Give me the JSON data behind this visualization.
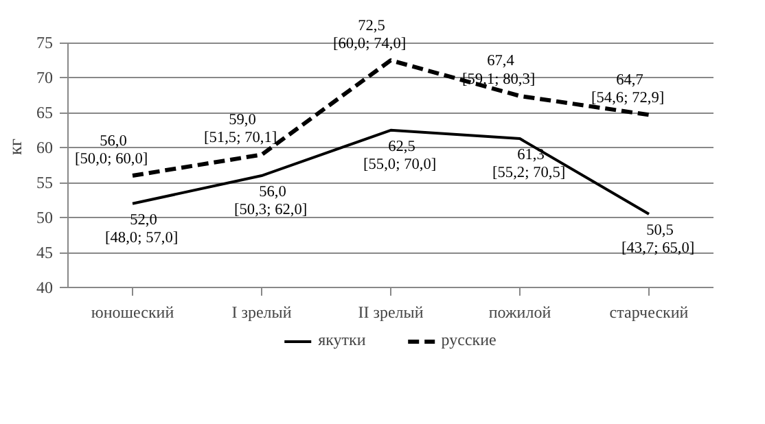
{
  "chart_data": {
    "type": "line",
    "ylabel": "кг",
    "categories": [
      "юношеский",
      "I зрелый",
      "II зрелый",
      "пожилой",
      "старческий"
    ],
    "series": [
      {
        "name": "якутки",
        "color": "#000000",
        "line_style": "solid",
        "values": [
          52.0,
          56.0,
          62.5,
          61.3,
          50.5
        ],
        "value_labels": [
          "52,0\n[48,0;  57,0]",
          "56,0\n[50,3;  62,0]",
          "62,5\n[55,0;  70,0]",
          "61,3\n[55,2;  70,5]",
          "50,5\n[43,7;  65,0]"
        ]
      },
      {
        "name": "русские",
        "color": "#000000",
        "line_style": "dashed",
        "values": [
          56.0,
          59.0,
          72.5,
          67.4,
          64.7
        ],
        "value_labels": [
          "56,0\n[50,0;  60,0]",
          "59,0\n[51,5;  70,1]",
          "72,5\n[60,0;  74,0]",
          "67,4\n[59,1;  80,3]",
          "64,7\n[54,6;  72,9]"
        ]
      }
    ],
    "ylim": [
      40,
      75
    ],
    "yticks": [
      40,
      45,
      50,
      55,
      60,
      65,
      70,
      75
    ],
    "grid": "y",
    "legend": "bottom",
    "marker": "none"
  }
}
